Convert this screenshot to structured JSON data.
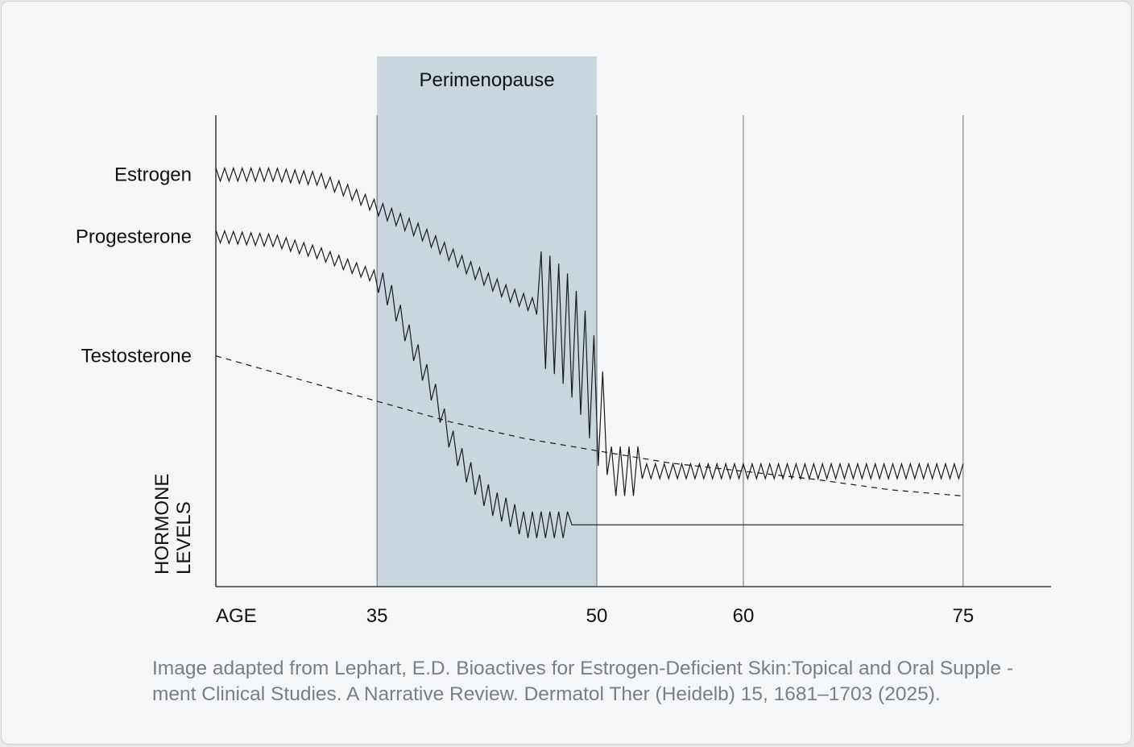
{
  "chart_data": {
    "type": "line",
    "band": {
      "label": "Perimenopause",
      "x_start": 35,
      "x_end": 50,
      "color": "#c9d6de"
    },
    "x_label": "AGE",
    "x_ticks": [
      35,
      50,
      60,
      75
    ],
    "y_label_lines": [
      "HORMONE",
      "LEVELS"
    ],
    "series": [
      {
        "name": "Estrogen",
        "style": "solid-fluctuating",
        "points": [
          [
            24,
            100
          ],
          [
            28,
            100
          ],
          [
            31,
            99
          ],
          [
            33,
            96
          ],
          [
            35,
            92
          ],
          [
            38,
            86
          ],
          [
            41,
            78
          ],
          [
            44,
            71
          ],
          [
            47,
            66
          ],
          [
            48,
            62
          ],
          [
            49,
            55
          ],
          [
            50,
            45
          ],
          [
            51,
            28
          ],
          [
            53,
            28
          ],
          [
            75,
            28
          ]
        ]
      },
      {
        "name": "Progesterone",
        "style": "solid-fluctuating",
        "points": [
          [
            24,
            85
          ],
          [
            28,
            84
          ],
          [
            31,
            81
          ],
          [
            33,
            78
          ],
          [
            35,
            75
          ],
          [
            36,
            70
          ],
          [
            37,
            62
          ],
          [
            38,
            54
          ],
          [
            39,
            46
          ],
          [
            40,
            36
          ],
          [
            41,
            29
          ],
          [
            42,
            24
          ],
          [
            43,
            20
          ],
          [
            44,
            18
          ],
          [
            45,
            15
          ],
          [
            48,
            15
          ],
          [
            75,
            15
          ]
        ]
      },
      {
        "name": "Testosterone",
        "style": "dashed",
        "points": [
          [
            24,
            56
          ],
          [
            35,
            45
          ],
          [
            40,
            40
          ],
          [
            45,
            36
          ],
          [
            50,
            33
          ],
          [
            55,
            30
          ],
          [
            60,
            28
          ],
          [
            65,
            26
          ],
          [
            70,
            23.5
          ],
          [
            75,
            22
          ]
        ]
      }
    ],
    "xlim": [
      24,
      81
    ],
    "ylim": [
      0,
      115
    ],
    "grid": false
  },
  "caption": {
    "line1": "Image adapted from Lephart, E.D. Bioactives for Estrogen-Deficient Skin:Topical and Oral Supple  -",
    "line2": "ment Clinical Studies. A Narrative Review. Dermatol Ther (Heidelb) 15, 1681–1703 (2025)."
  },
  "colors": {
    "line": "#1a1a1a",
    "axis": "#1a1a1a",
    "vline": "#6b6f73",
    "text": "#111111",
    "caption": "#7a7f85"
  }
}
